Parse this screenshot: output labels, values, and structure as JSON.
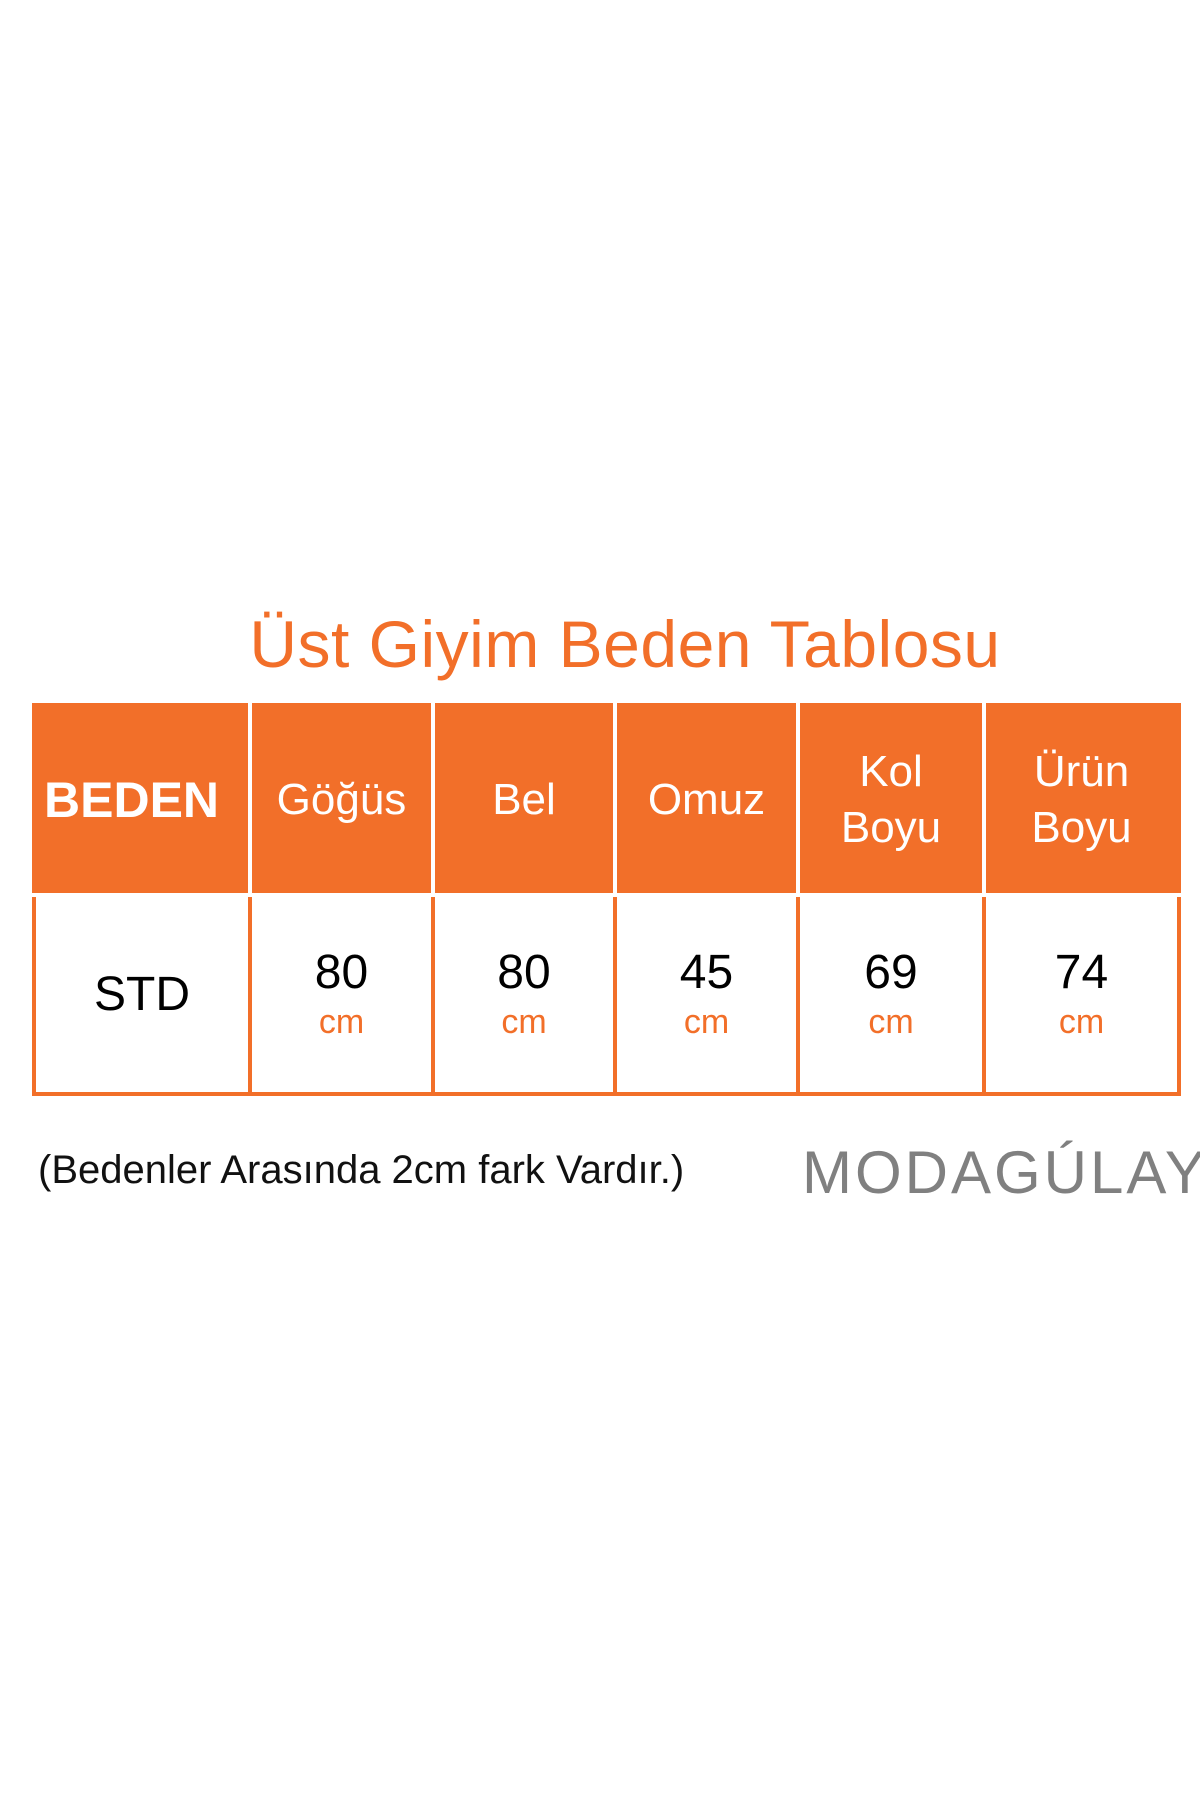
{
  "title": "Üst Giyim Beden Tablosu",
  "table": {
    "headers": [
      "BEDEN",
      "Göğüs",
      "Bel",
      "Omuz",
      "Kol Boyu",
      "Ürün Boyu"
    ],
    "row": {
      "size": "STD",
      "values": [
        "80",
        "80",
        "45",
        "69",
        "74"
      ],
      "unit": "cm"
    }
  },
  "note": "(Bedenler Arasında 2cm fark Vardır.)",
  "logo": "MODAGÚLAY",
  "colors": {
    "accent": "#f26f29",
    "logo": "#808080"
  }
}
